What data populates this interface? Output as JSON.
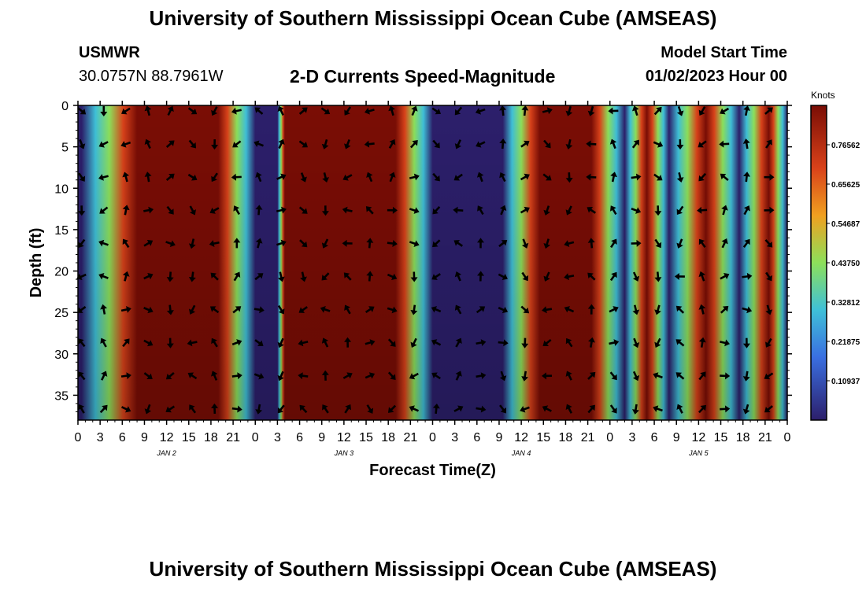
{
  "header": {
    "title": "University of Southern Mississippi Ocean Cube (AMSEAS)",
    "station": "USMWR",
    "coords": "30.0757N  88.7961W",
    "model_start_label": "Model Start Time",
    "model_start_value": "01/02/2023 Hour 00"
  },
  "footer": {
    "title": "University of Southern Mississippi Ocean Cube (AMSEAS)"
  },
  "colors": {
    "low": "#2c1f6b",
    "mid": "#3fc0d8",
    "green": "#8de05a",
    "high": "#d9421a",
    "max": "#7a0d05",
    "arrow": "#000000"
  },
  "chart_data": {
    "type": "heatmap",
    "title": "2-D Currents Speed-Magnitude",
    "xlabel": "Forecast Time(Z)",
    "ylabel": "Depth (ft)",
    "x_ticks": [
      "0",
      "3",
      "6",
      "9",
      "12",
      "15",
      "18",
      "21",
      "0",
      "3",
      "6",
      "9",
      "12",
      "15",
      "18",
      "21",
      "0",
      "3",
      "6",
      "9",
      "12",
      "15",
      "18",
      "21",
      "0",
      "3",
      "6",
      "9",
      "12",
      "15",
      "18",
      "21",
      "0"
    ],
    "x_range_hours": [
      0,
      96
    ],
    "day_labels": [
      {
        "label": "JAN 2",
        "hour": 12
      },
      {
        "label": "JAN 3",
        "hour": 36
      },
      {
        "label": "JAN 4",
        "hour": 60
      },
      {
        "label": "JAN 5",
        "hour": 84
      }
    ],
    "y_ticks": [
      0,
      5,
      10,
      15,
      20,
      25,
      30,
      35
    ],
    "ylim": [
      0,
      38
    ],
    "colorbar": {
      "unit": "Knots",
      "range": [
        0,
        0.875
      ],
      "tick_labels": [
        "0.10937",
        "0.21875",
        "0.32812",
        "0.43750",
        "0.54687",
        "0.65625",
        "0.76562"
      ]
    },
    "speed_maxima_hours": [
      8,
      19,
      28,
      43,
      62.5,
      69.5,
      77,
      85,
      93.5
    ],
    "speed_minima_hours": [
      0.5,
      24,
      27,
      48,
      52,
      57.5,
      74,
      80,
      89.5,
      96
    ],
    "arrow_depths_ft": [
      0,
      4,
      8,
      12,
      16,
      20,
      24,
      28,
      32,
      36
    ],
    "arrow_hours": [
      0.5,
      3.5,
      6.5,
      9.5,
      12.5,
      15.5,
      18.5,
      21.5,
      24.5,
      27.5,
      30.5,
      33.5,
      36.5,
      39.5,
      42.5,
      45.5,
      48.5,
      51.5,
      54.5,
      57.5,
      60.5,
      63.5,
      66.5,
      69.5,
      72.5,
      75.5,
      78.5,
      81.5,
      84.5,
      87.5,
      90.5,
      93.5
    ]
  }
}
